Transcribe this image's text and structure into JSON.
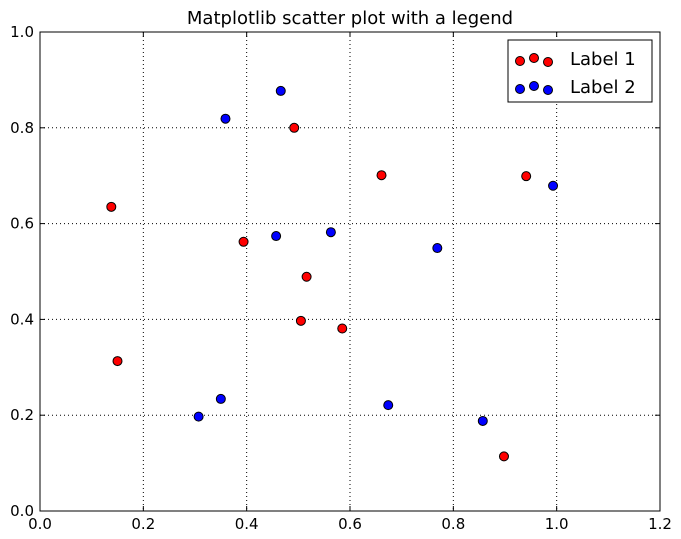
{
  "chart_data": {
    "type": "scatter",
    "title": "Matplotlib scatter plot with a legend",
    "xlabel": "",
    "ylabel": "",
    "xlim": [
      0.0,
      1.2
    ],
    "ylim": [
      0.0,
      1.0
    ],
    "xticks": [
      "0.0",
      "0.2",
      "0.4",
      "0.6",
      "0.8",
      "1.0",
      "1.2"
    ],
    "yticks": [
      "0.0",
      "0.2",
      "0.4",
      "0.6",
      "0.8",
      "1.0"
    ],
    "grid": true,
    "legend_position": "top-right",
    "series": [
      {
        "name": "Label 1",
        "color": "#ff0000",
        "points": [
          {
            "x": 0.138,
            "y": 0.635
          },
          {
            "x": 0.15,
            "y": 0.313
          },
          {
            "x": 0.394,
            "y": 0.562
          },
          {
            "x": 0.492,
            "y": 0.8
          },
          {
            "x": 0.505,
            "y": 0.397
          },
          {
            "x": 0.516,
            "y": 0.489
          },
          {
            "x": 0.585,
            "y": 0.381
          },
          {
            "x": 0.661,
            "y": 0.701
          },
          {
            "x": 0.898,
            "y": 0.114
          },
          {
            "x": 0.941,
            "y": 0.699
          }
        ]
      },
      {
        "name": "Label 2",
        "color": "#0000ff",
        "points": [
          {
            "x": 0.307,
            "y": 0.197
          },
          {
            "x": 0.35,
            "y": 0.234
          },
          {
            "x": 0.359,
            "y": 0.819
          },
          {
            "x": 0.457,
            "y": 0.574
          },
          {
            "x": 0.466,
            "y": 0.877
          },
          {
            "x": 0.563,
            "y": 0.582
          },
          {
            "x": 0.674,
            "y": 0.221
          },
          {
            "x": 0.769,
            "y": 0.549
          },
          {
            "x": 0.857,
            "y": 0.188
          },
          {
            "x": 0.993,
            "y": 0.679
          }
        ]
      }
    ]
  }
}
